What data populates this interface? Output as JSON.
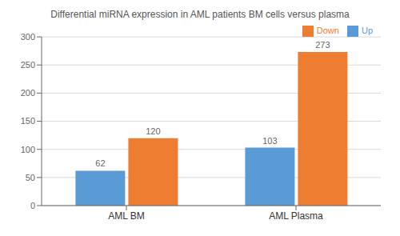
{
  "chart_data": {
    "type": "bar",
    "title": "Differential miRNA expression in AML patients BM cells versus plasma",
    "categories": [
      "AML BM",
      "AML Plasma"
    ],
    "series": [
      {
        "name": "Up",
        "color": "#5b9bd5",
        "values": [
          62,
          103
        ]
      },
      {
        "name": "Down",
        "color": "#ed7d31",
        "values": [
          120,
          273
        ]
      }
    ],
    "ylim": [
      0,
      300
    ],
    "yticks": [
      0,
      50,
      100,
      150,
      200,
      250,
      300
    ],
    "grid": true,
    "legend": "upper right",
    "data_labels": true
  }
}
